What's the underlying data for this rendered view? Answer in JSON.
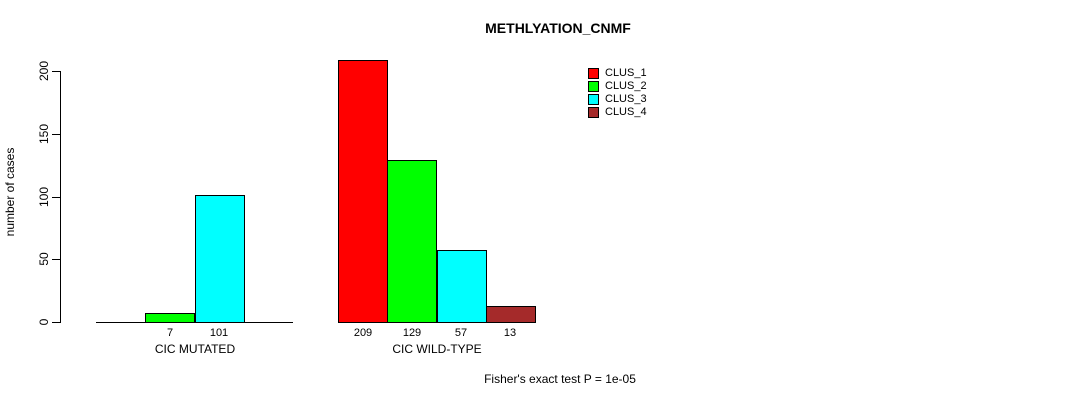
{
  "title": "METHLYATION_CNMF",
  "ylabel": "number of cases",
  "footnote": "Fisher's exact test P = 1e-05",
  "legend": {
    "items": [
      {
        "label": "CLUS_1",
        "color": "#FF0000"
      },
      {
        "label": "CLUS_2",
        "color": "#00FF00"
      },
      {
        "label": "CLUS_3",
        "color": "#00FFFF"
      },
      {
        "label": "CLUS_4",
        "color": "#A52A2A"
      }
    ]
  },
  "chart_data": {
    "type": "bar",
    "title": "METHLYATION_CNMF",
    "xlabel": "",
    "ylabel": "number of cases",
    "ylim": [
      0,
      200
    ],
    "yticks": [
      0,
      50,
      100,
      150,
      200
    ],
    "grid": false,
    "legend_position": "top-right",
    "annotation": "Fisher's exact test P = 1e-05",
    "categories": [
      "CIC MUTATED",
      "CIC WILD-TYPE"
    ],
    "series": [
      {
        "name": "CLUS_1",
        "color": "#FF0000",
        "values": [
          0,
          209
        ]
      },
      {
        "name": "CLUS_2",
        "color": "#00FF00",
        "values": [
          7,
          129
        ]
      },
      {
        "name": "CLUS_3",
        "color": "#00FFFF",
        "values": [
          101,
          57
        ]
      },
      {
        "name": "CLUS_4",
        "color": "#A52A2A",
        "values": [
          0,
          13
        ]
      }
    ],
    "bar_value_labels": [
      [
        "",
        "7",
        "101",
        ""
      ],
      [
        "209",
        "129",
        "57",
        "13"
      ]
    ]
  }
}
